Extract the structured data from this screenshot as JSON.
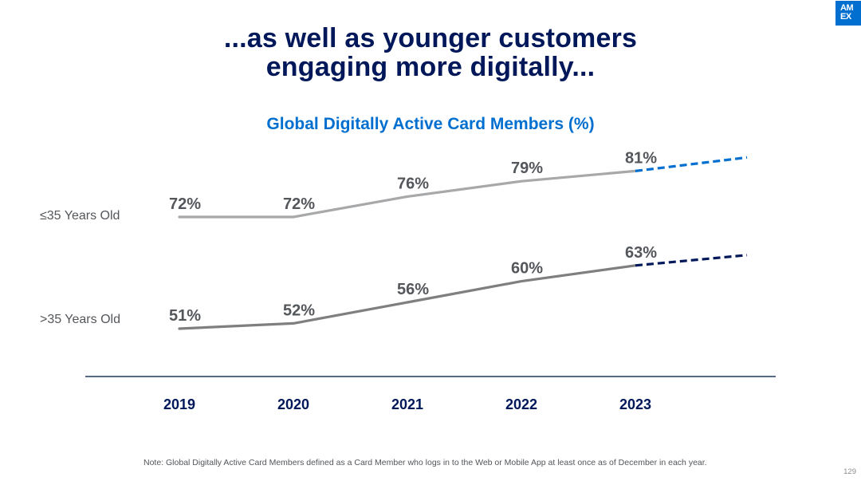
{
  "slide": {
    "title_line1": "...as well as younger customers",
    "title_line2": "engaging more digitally...",
    "logo_line1": "AM",
    "logo_line2": "EX",
    "note": "Note: Global Digitally Active Card Members defined as a Card Member who logs in to the Web or Mobile App at least once as of December in each year.",
    "page_number": "129"
  },
  "colors": {
    "brand_blue": "#006fcf",
    "navy": "#00175a",
    "young_line": "#a7a8aa",
    "old_line": "#7f7f7f",
    "young_projection": "#006fcf",
    "old_projection": "#00175a",
    "axis": "#1f3864",
    "value_label": "#53565a"
  },
  "chart_data": {
    "type": "line",
    "title": "Global Digitally Active Card Members (%)",
    "categories": [
      "2019",
      "2020",
      "2021",
      "2022",
      "2023"
    ],
    "unit": "%",
    "ylim": [
      30,
      100
    ],
    "series": [
      {
        "name": "≤35 Years Old",
        "values": [
          72,
          72,
          76,
          79,
          81
        ],
        "labels": [
          "72%",
          "72%",
          "76%",
          "79%",
          "81%"
        ],
        "projection": "dashed upward trend beyond 2023"
      },
      {
        "name": ">35 Years Old",
        "values": [
          51,
          52,
          56,
          60,
          63
        ],
        "labels": [
          "51%",
          "52%",
          "56%",
          "60%",
          "63%"
        ],
        "projection": "dashed upward trend beyond 2023"
      }
    ]
  }
}
